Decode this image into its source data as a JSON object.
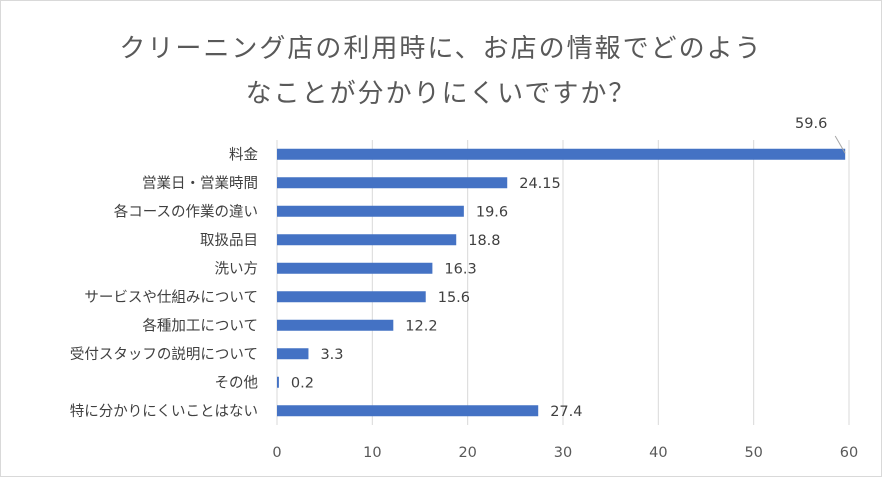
{
  "chart_data": {
    "type": "bar",
    "orientation": "horizontal",
    "title_lines": [
      "クリーニング店の利用時に、お店の情報でどのよう",
      "なことが分かりにくいですか？"
    ],
    "categories": [
      "料金",
      "営業日・営業時間",
      "各コースの作業の違い",
      "取扱品目",
      "洗い方",
      "サービスや仕組みについて",
      "各種加工について",
      "受付スタッフの説明について",
      "その他",
      "特に分かりにくいことはない"
    ],
    "values": [
      59.6,
      24.15,
      19.6,
      18.8,
      16.3,
      15.6,
      12.2,
      3.3,
      0.2,
      27.4
    ],
    "value_labels": [
      "59.6",
      "24.15",
      "19.6",
      "18.8",
      "16.3",
      "15.6",
      "12.2",
      "3.3",
      "0.2",
      "27.4"
    ],
    "xlim": [
      0,
      60
    ],
    "x_ticks": [
      "0",
      "10",
      "20",
      "30",
      "40",
      "50",
      "60"
    ],
    "grid": "vertical",
    "colors": {
      "bar": "#4472c4",
      "grid": "#d9d9d9",
      "text": "#404040"
    }
  }
}
